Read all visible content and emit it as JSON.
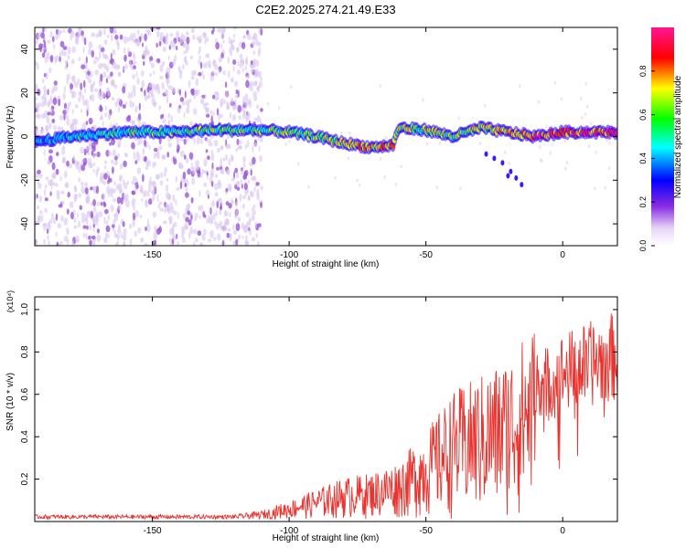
{
  "title": "C2E2.2025.274.21.49.E33",
  "colors": {
    "signal": "#e8332e",
    "scatter": "#9b59d6",
    "scatter_light": "#d9c7f0",
    "colormap": [
      "#ffffff",
      "#8a2be2",
      "#0000ff",
      "#00ffff",
      "#00ff00",
      "#ffff00",
      "#ff0000",
      "#ff1493"
    ]
  },
  "chart_data": [
    {
      "type": "heatmap",
      "title": "C2E2.2025.274.21.49.E33",
      "xlabel": "Height of straight line (km)",
      "ylabel": "Frequency (Hz)",
      "xlim": [
        -193,
        20
      ],
      "ylim": [
        -50,
        50
      ],
      "xticks": [
        -150,
        -100,
        -50,
        0
      ],
      "xtick_labels": [
        "-150",
        "-100",
        "-50",
        "0"
      ],
      "yticks": [
        -40,
        -20,
        0,
        20,
        40
      ],
      "ytick_labels": [
        "-40",
        "-20",
        "0",
        "20",
        "40"
      ],
      "colorbar": {
        "label": "Normalized spectral amplitude",
        "range": [
          0,
          1
        ],
        "ticks": [
          0.0,
          0.2,
          0.4,
          0.6,
          0.8
        ],
        "tick_labels": [
          "0.0",
          "0.2",
          "0.4",
          "0.6",
          "0.8"
        ]
      },
      "ridge": {
        "x": [
          -190,
          -180,
          -170,
          -160,
          -150,
          -140,
          -130,
          -120,
          -110,
          -100,
          -90,
          -80,
          -70,
          -62,
          -60,
          -50,
          -40,
          -30,
          -20,
          -10,
          0,
          10,
          20
        ],
        "y": [
          -2,
          0,
          1,
          2,
          2,
          2,
          3,
          3,
          3,
          2,
          0,
          -3,
          -5,
          -4,
          4,
          3,
          0,
          4,
          2,
          0,
          2,
          2,
          2
        ],
        "amplitude": [
          0.3,
          0.35,
          0.4,
          0.45,
          0.45,
          0.45,
          0.5,
          0.5,
          0.45,
          0.5,
          0.55,
          0.65,
          0.7,
          0.65,
          0.6,
          0.55,
          0.55,
          0.6,
          0.7,
          0.8,
          0.85,
          0.85,
          0.9
        ]
      },
      "noise_region_x": [
        -193,
        -110
      ]
    },
    {
      "type": "line",
      "xlabel": "Height of straight line (km)",
      "ylabel": "SNR (10 * v/v)",
      "y_multiplier": "(x10⁴)",
      "xlim": [
        -193,
        20
      ],
      "ylim": [
        0,
        1.06
      ],
      "xticks": [
        -150,
        -100,
        -50,
        0
      ],
      "xtick_labels": [
        "-150",
        "-100",
        "-50",
        "0"
      ],
      "yticks": [
        0.2,
        0.4,
        0.6,
        0.8,
        1.0
      ],
      "ytick_labels": [
        "0.2",
        "0.4",
        "0.6",
        "0.8",
        "1.0"
      ],
      "envelope": {
        "x": [
          -193,
          -120,
          -110,
          -100,
          -90,
          -80,
          -70,
          -60,
          -50,
          -40,
          -30,
          -20,
          -10,
          -5,
          0,
          10,
          20
        ],
        "y": [
          0.02,
          0.02,
          0.04,
          0.08,
          0.13,
          0.18,
          0.2,
          0.25,
          0.38,
          0.55,
          0.62,
          0.7,
          0.85,
          0.78,
          0.85,
          0.9,
          0.95
        ]
      }
    }
  ]
}
